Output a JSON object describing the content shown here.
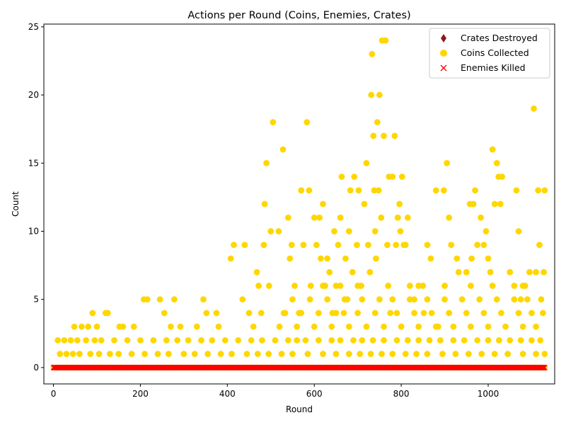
{
  "chart_data": {
    "type": "scatter",
    "title": "Actions per Round (Coins, Enemies, Crates)",
    "xlabel": "Round",
    "ylabel": "Count",
    "xlim": [
      -22,
      1153
    ],
    "ylim": [
      -1.2,
      25.2
    ],
    "xticks": [
      0,
      200,
      400,
      600,
      800,
      1000
    ],
    "yticks": [
      0,
      5,
      10,
      15,
      20,
      25
    ],
    "grid": false,
    "legend_position": "top-right",
    "round_count": 1131,
    "series": [
      {
        "name": "Crates Destroyed",
        "marker": "diamond",
        "color": "#8b1a1a",
        "y_values_all_rounds": 0
      },
      {
        "name": "Coins Collected",
        "marker": "circle",
        "color": "#ffd700",
        "points": [
          [
            90,
            4
          ],
          [
            120,
            4
          ],
          [
            125,
            4
          ],
          [
            100,
            3
          ],
          [
            48,
            3
          ],
          [
            65,
            3
          ],
          [
            80,
            3
          ],
          [
            152,
            3
          ],
          [
            160,
            3
          ],
          [
            185,
            3
          ],
          [
            208,
            5
          ],
          [
            216,
            5
          ],
          [
            245,
            5
          ],
          [
            278,
            5
          ],
          [
            255,
            4
          ],
          [
            270,
            3
          ],
          [
            292,
            3
          ],
          [
            330,
            3
          ],
          [
            345,
            5
          ],
          [
            352,
            4
          ],
          [
            375,
            4
          ],
          [
            380,
            3
          ],
          [
            408,
            8
          ],
          [
            415,
            9
          ],
          [
            440,
            9
          ],
          [
            435,
            5
          ],
          [
            450,
            4
          ],
          [
            460,
            3
          ],
          [
            468,
            7
          ],
          [
            472,
            6
          ],
          [
            478,
            4
          ],
          [
            484,
            9
          ],
          [
            486,
            12
          ],
          [
            490,
            15
          ],
          [
            496,
            6
          ],
          [
            500,
            10
          ],
          [
            505,
            18
          ],
          [
            518,
            10
          ],
          [
            528,
            16
          ],
          [
            533,
            4
          ],
          [
            540,
            11
          ],
          [
            544,
            8
          ],
          [
            548,
            9
          ],
          [
            555,
            6
          ],
          [
            565,
            4
          ],
          [
            570,
            13
          ],
          [
            575,
            9
          ],
          [
            583,
            18
          ],
          [
            588,
            13
          ],
          [
            592,
            6
          ],
          [
            600,
            11
          ],
          [
            605,
            9
          ],
          [
            612,
            11
          ],
          [
            615,
            8
          ],
          [
            620,
            12
          ],
          [
            625,
            6
          ],
          [
            630,
            8
          ],
          [
            635,
            7
          ],
          [
            642,
            4
          ],
          [
            646,
            10
          ],
          [
            650,
            6
          ],
          [
            655,
            9
          ],
          [
            660,
            11
          ],
          [
            663,
            14
          ],
          [
            668,
            4
          ],
          [
            672,
            8
          ],
          [
            676,
            5
          ],
          [
            680,
            10
          ],
          [
            683,
            13
          ],
          [
            688,
            7
          ],
          [
            692,
            14
          ],
          [
            698,
            9
          ],
          [
            702,
            13
          ],
          [
            708,
            6
          ],
          [
            715,
            12
          ],
          [
            720,
            15
          ],
          [
            724,
            9
          ],
          [
            728,
            7
          ],
          [
            731,
            20
          ],
          [
            733,
            23
          ],
          [
            736,
            17
          ],
          [
            738,
            13
          ],
          [
            740,
            10
          ],
          [
            742,
            8
          ],
          [
            745,
            18
          ],
          [
            748,
            13
          ],
          [
            750,
            20
          ],
          [
            754,
            11
          ],
          [
            756,
            24
          ],
          [
            760,
            17
          ],
          [
            764,
            24
          ],
          [
            768,
            9
          ],
          [
            772,
            14
          ],
          [
            775,
            4
          ],
          [
            780,
            14
          ],
          [
            785,
            17
          ],
          [
            788,
            9
          ],
          [
            792,
            11
          ],
          [
            796,
            12
          ],
          [
            798,
            10
          ],
          [
            802,
            14
          ],
          [
            806,
            9
          ],
          [
            810,
            9
          ],
          [
            815,
            11
          ],
          [
            820,
            6
          ],
          [
            830,
            5
          ],
          [
            840,
            6
          ],
          [
            852,
            4
          ],
          [
            860,
            9
          ],
          [
            868,
            8
          ],
          [
            880,
            13
          ],
          [
            885,
            3
          ],
          [
            898,
            13
          ],
          [
            905,
            15
          ],
          [
            910,
            11
          ],
          [
            915,
            9
          ],
          [
            928,
            8
          ],
          [
            932,
            7
          ],
          [
            950,
            7
          ],
          [
            958,
            12
          ],
          [
            962,
            8
          ],
          [
            966,
            12
          ],
          [
            970,
            13
          ],
          [
            975,
            9
          ],
          [
            983,
            11
          ],
          [
            990,
            9
          ],
          [
            995,
            10
          ],
          [
            1000,
            8
          ],
          [
            1005,
            7
          ],
          [
            1010,
            16
          ],
          [
            1015,
            12
          ],
          [
            1020,
            15
          ],
          [
            1024,
            14
          ],
          [
            1028,
            12
          ],
          [
            1032,
            14
          ],
          [
            1050,
            7
          ],
          [
            1060,
            6
          ],
          [
            1065,
            13
          ],
          [
            1070,
            10
          ],
          [
            1075,
            5
          ],
          [
            1085,
            6
          ],
          [
            1095,
            7
          ],
          [
            1105,
            19
          ],
          [
            1110,
            7
          ],
          [
            1115,
            13
          ],
          [
            1118,
            9
          ],
          [
            1122,
            5
          ],
          [
            1126,
            4
          ],
          [
            1130,
            13
          ],
          [
            1128,
            7
          ],
          [
            10,
            2
          ],
          [
            25,
            2
          ],
          [
            40,
            2
          ],
          [
            55,
            2
          ],
          [
            75,
            2
          ],
          [
            95,
            2
          ],
          [
            110,
            2
          ],
          [
            140,
            2
          ],
          [
            170,
            2
          ],
          [
            200,
            2
          ],
          [
            230,
            2
          ],
          [
            260,
            2
          ],
          [
            285,
            2
          ],
          [
            310,
            2
          ],
          [
            340,
            2
          ],
          [
            365,
            2
          ],
          [
            395,
            2
          ],
          [
            425,
            2
          ],
          [
            455,
            2
          ],
          [
            480,
            2
          ],
          [
            510,
            2
          ],
          [
            540,
            2
          ],
          [
            560,
            2
          ],
          [
            580,
            2
          ],
          [
            610,
            2
          ],
          [
            640,
            2
          ],
          [
            660,
            2
          ],
          [
            690,
            2
          ],
          [
            710,
            2
          ],
          [
            735,
            2
          ],
          [
            760,
            2
          ],
          [
            790,
            2
          ],
          [
            815,
            2
          ],
          [
            840,
            2
          ],
          [
            865,
            2
          ],
          [
            890,
            2
          ],
          [
            920,
            2
          ],
          [
            945,
            2
          ],
          [
            975,
            2
          ],
          [
            1000,
            2
          ],
          [
            1025,
            2
          ],
          [
            1050,
            2
          ],
          [
            1075,
            2
          ],
          [
            1100,
            2
          ],
          [
            1120,
            2
          ],
          [
            15,
            1
          ],
          [
            30,
            1
          ],
          [
            45,
            1
          ],
          [
            60,
            1
          ],
          [
            85,
            1
          ],
          [
            105,
            1
          ],
          [
            130,
            1
          ],
          [
            150,
            1
          ],
          [
            180,
            1
          ],
          [
            210,
            1
          ],
          [
            240,
            1
          ],
          [
            265,
            1
          ],
          [
            300,
            1
          ],
          [
            325,
            1
          ],
          [
            355,
            1
          ],
          [
            385,
            1
          ],
          [
            410,
            1
          ],
          [
            445,
            1
          ],
          [
            470,
            1
          ],
          [
            495,
            1
          ],
          [
            525,
            1
          ],
          [
            550,
            1
          ],
          [
            585,
            1
          ],
          [
            620,
            1
          ],
          [
            650,
            1
          ],
          [
            680,
            1
          ],
          [
            705,
            1
          ],
          [
            730,
            1
          ],
          [
            755,
            1
          ],
          [
            780,
            1
          ],
          [
            810,
            1
          ],
          [
            835,
            1
          ],
          [
            860,
            1
          ],
          [
            895,
            1
          ],
          [
            925,
            1
          ],
          [
            955,
            1
          ],
          [
            985,
            1
          ],
          [
            1015,
            1
          ],
          [
            1045,
            1
          ],
          [
            1080,
            1
          ],
          [
            1110,
            1
          ],
          [
            1130,
            1
          ],
          [
            520,
            3
          ],
          [
            560,
            3
          ],
          [
            600,
            3
          ],
          [
            640,
            3
          ],
          [
            680,
            3
          ],
          [
            720,
            3
          ],
          [
            760,
            3
          ],
          [
            800,
            3
          ],
          [
            840,
            3
          ],
          [
            880,
            3
          ],
          [
            920,
            3
          ],
          [
            960,
            3
          ],
          [
            1000,
            3
          ],
          [
            1040,
            3
          ],
          [
            1080,
            3
          ],
          [
            1110,
            3
          ],
          [
            530,
            4
          ],
          [
            570,
            4
          ],
          [
            610,
            4
          ],
          [
            650,
            4
          ],
          [
            700,
            4
          ],
          [
            740,
            4
          ],
          [
            790,
            4
          ],
          [
            830,
            4
          ],
          [
            870,
            4
          ],
          [
            910,
            4
          ],
          [
            950,
            4
          ],
          [
            990,
            4
          ],
          [
            1030,
            4
          ],
          [
            1070,
            4
          ],
          [
            1100,
            4
          ],
          [
            550,
            5
          ],
          [
            590,
            5
          ],
          [
            630,
            5
          ],
          [
            670,
            5
          ],
          [
            710,
            5
          ],
          [
            750,
            5
          ],
          [
            780,
            5
          ],
          [
            820,
            5
          ],
          [
            860,
            5
          ],
          [
            900,
            5
          ],
          [
            940,
            5
          ],
          [
            980,
            5
          ],
          [
            1020,
            5
          ],
          [
            1060,
            5
          ],
          [
            1090,
            5
          ],
          [
            620,
            6
          ],
          [
            660,
            6
          ],
          [
            700,
            6
          ],
          [
            770,
            6
          ],
          [
            850,
            6
          ],
          [
            900,
            6
          ],
          [
            960,
            6
          ],
          [
            1010,
            6
          ],
          [
            1080,
            6
          ]
        ]
      },
      {
        "name": "Enemies Killed",
        "marker": "x",
        "color": "#ff0000",
        "y_values_all_rounds": 0
      }
    ]
  }
}
